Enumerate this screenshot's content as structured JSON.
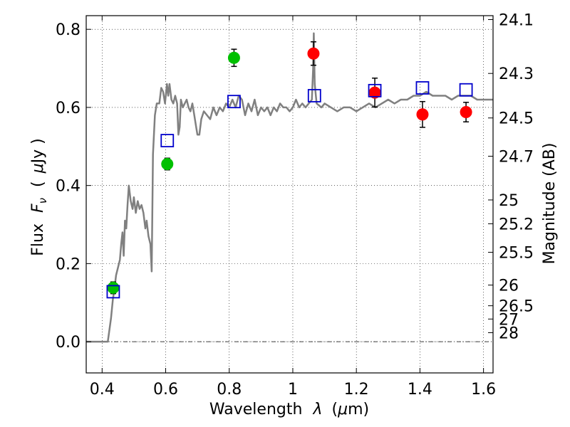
{
  "chart_data": {
    "type": "scatter",
    "xlabel": "Wavelength",
    "xlabel_symbol": "λ",
    "xlabel_unit_open": "(",
    "xlabel_unit_mu": "μ",
    "xlabel_unit_rest": "m)",
    "ylabel": "Flux",
    "ylabel_symbol": "F",
    "ylabel_subscript": "ν",
    "ylabel_unit_open": "(",
    "ylabel_unit_mu": "μ",
    "ylabel_unit_rest": "Jy )",
    "y2label": "Magnitude (AB)",
    "xlim": [
      0.35,
      1.63
    ],
    "ylim": [
      -0.08,
      0.835
    ],
    "grid": true,
    "x_ticks": [
      {
        "value": 0.4,
        "label": "0.4"
      },
      {
        "value": 0.6,
        "label": "0.6"
      },
      {
        "value": 0.8,
        "label": "0.8"
      },
      {
        "value": 1.0,
        "label": "1"
      },
      {
        "value": 1.2,
        "label": "1.2"
      },
      {
        "value": 1.4,
        "label": "1.4"
      },
      {
        "value": 1.6,
        "label": "1.6"
      }
    ],
    "y_ticks": [
      {
        "value": 0.0,
        "label": "0.0"
      },
      {
        "value": 0.2,
        "label": "0.2"
      },
      {
        "value": 0.4,
        "label": "0.4"
      },
      {
        "value": 0.6,
        "label": "0.6"
      },
      {
        "value": 0.8,
        "label": "0.8"
      }
    ],
    "y2_ticks": [
      {
        "flux": 0.825,
        "label": "24.1"
      },
      {
        "flux": 0.687,
        "label": "24.3"
      },
      {
        "flux": 0.573,
        "label": "24.5"
      },
      {
        "flux": 0.475,
        "label": "24.7"
      },
      {
        "flux": 0.363,
        "label": "25"
      },
      {
        "flux": 0.302,
        "label": "25.2"
      },
      {
        "flux": 0.229,
        "label": "25.5"
      },
      {
        "flux": 0.145,
        "label": "26"
      },
      {
        "flux": 0.092,
        "label": "26.5"
      },
      {
        "flux": 0.058,
        "label": "27"
      },
      {
        "flux": 0.023,
        "label": "28"
      }
    ],
    "series": [
      {
        "name": "model_spectrum",
        "kind": "line",
        "color": "#808080",
        "points": [
          [
            0.35,
            0.0
          ],
          [
            0.418,
            0.0
          ],
          [
            0.428,
            0.06
          ],
          [
            0.434,
            0.11
          ],
          [
            0.438,
            0.13
          ],
          [
            0.444,
            0.17
          ],
          [
            0.45,
            0.19
          ],
          [
            0.456,
            0.21
          ],
          [
            0.46,
            0.25
          ],
          [
            0.464,
            0.28
          ],
          [
            0.468,
            0.22
          ],
          [
            0.472,
            0.31
          ],
          [
            0.476,
            0.29
          ],
          [
            0.48,
            0.35
          ],
          [
            0.484,
            0.4
          ],
          [
            0.49,
            0.36
          ],
          [
            0.496,
            0.34
          ],
          [
            0.5,
            0.37
          ],
          [
            0.506,
            0.33
          ],
          [
            0.512,
            0.36
          ],
          [
            0.518,
            0.34
          ],
          [
            0.524,
            0.35
          ],
          [
            0.53,
            0.33
          ],
          [
            0.536,
            0.29
          ],
          [
            0.54,
            0.31
          ],
          [
            0.546,
            0.27
          ],
          [
            0.552,
            0.25
          ],
          [
            0.556,
            0.18
          ],
          [
            0.56,
            0.48
          ],
          [
            0.566,
            0.58
          ],
          [
            0.572,
            0.61
          ],
          [
            0.58,
            0.61
          ],
          [
            0.586,
            0.65
          ],
          [
            0.592,
            0.64
          ],
          [
            0.598,
            0.61
          ],
          [
            0.604,
            0.66
          ],
          [
            0.608,
            0.63
          ],
          [
            0.612,
            0.66
          ],
          [
            0.618,
            0.62
          ],
          [
            0.624,
            0.61
          ],
          [
            0.63,
            0.63
          ],
          [
            0.636,
            0.61
          ],
          [
            0.64,
            0.53
          ],
          [
            0.644,
            0.55
          ],
          [
            0.648,
            0.62
          ],
          [
            0.654,
            0.6
          ],
          [
            0.66,
            0.61
          ],
          [
            0.666,
            0.62
          ],
          [
            0.672,
            0.6
          ],
          [
            0.678,
            0.59
          ],
          [
            0.684,
            0.61
          ],
          [
            0.69,
            0.58
          ],
          [
            0.696,
            0.55
          ],
          [
            0.7,
            0.53
          ],
          [
            0.706,
            0.53
          ],
          [
            0.712,
            0.57
          ],
          [
            0.72,
            0.59
          ],
          [
            0.73,
            0.58
          ],
          [
            0.74,
            0.57
          ],
          [
            0.75,
            0.6
          ],
          [
            0.76,
            0.58
          ],
          [
            0.77,
            0.6
          ],
          [
            0.78,
            0.59
          ],
          [
            0.79,
            0.61
          ],
          [
            0.8,
            0.6
          ],
          [
            0.81,
            0.62
          ],
          [
            0.82,
            0.6
          ],
          [
            0.83,
            0.63
          ],
          [
            0.84,
            0.62
          ],
          [
            0.85,
            0.58
          ],
          [
            0.86,
            0.61
          ],
          [
            0.87,
            0.59
          ],
          [
            0.88,
            0.62
          ],
          [
            0.89,
            0.58
          ],
          [
            0.9,
            0.6
          ],
          [
            0.91,
            0.59
          ],
          [
            0.92,
            0.6
          ],
          [
            0.93,
            0.58
          ],
          [
            0.94,
            0.6
          ],
          [
            0.95,
            0.59
          ],
          [
            0.96,
            0.61
          ],
          [
            0.97,
            0.6
          ],
          [
            0.98,
            0.6
          ],
          [
            0.99,
            0.59
          ],
          [
            1.0,
            0.6
          ],
          [
            1.01,
            0.62
          ],
          [
            1.02,
            0.6
          ],
          [
            1.03,
            0.61
          ],
          [
            1.04,
            0.6
          ],
          [
            1.05,
            0.61
          ],
          [
            1.06,
            0.62
          ],
          [
            1.064,
            0.7
          ],
          [
            1.066,
            0.79
          ],
          [
            1.069,
            0.66
          ],
          [
            1.075,
            0.61
          ],
          [
            1.09,
            0.6
          ],
          [
            1.1,
            0.61
          ],
          [
            1.12,
            0.6
          ],
          [
            1.14,
            0.59
          ],
          [
            1.16,
            0.6
          ],
          [
            1.18,
            0.6
          ],
          [
            1.2,
            0.59
          ],
          [
            1.22,
            0.6
          ],
          [
            1.24,
            0.61
          ],
          [
            1.26,
            0.6
          ],
          [
            1.28,
            0.61
          ],
          [
            1.3,
            0.62
          ],
          [
            1.32,
            0.61
          ],
          [
            1.34,
            0.62
          ],
          [
            1.36,
            0.62
          ],
          [
            1.38,
            0.63
          ],
          [
            1.4,
            0.63
          ],
          [
            1.42,
            0.64
          ],
          [
            1.44,
            0.63
          ],
          [
            1.46,
            0.63
          ],
          [
            1.48,
            0.63
          ],
          [
            1.5,
            0.62
          ],
          [
            1.52,
            0.63
          ],
          [
            1.54,
            0.63
          ],
          [
            1.56,
            0.63
          ],
          [
            1.58,
            0.62
          ],
          [
            1.6,
            0.62
          ],
          [
            1.63,
            0.62
          ]
        ]
      },
      {
        "name": "green_photometry",
        "kind": "points",
        "color": "#00c000",
        "x": [
          0.435,
          0.605,
          0.815
        ],
        "y": [
          0.138,
          0.455,
          0.727
        ],
        "yerr": [
          0.015,
          0.015,
          0.022
        ]
      },
      {
        "name": "red_photometry",
        "kind": "points",
        "color": "#ff0000",
        "x": [
          1.065,
          1.258,
          1.408,
          1.545
        ],
        "y": [
          0.738,
          0.638,
          0.582,
          0.588
        ],
        "yerr": [
          0.03,
          0.037,
          0.033,
          0.025
        ]
      },
      {
        "name": "model_synthetic_photometry",
        "kind": "squares",
        "color": "#0000cc",
        "x": [
          0.435,
          0.605,
          0.815,
          1.068,
          1.258,
          1.408,
          1.545
        ],
        "y": [
          0.128,
          0.515,
          0.615,
          0.63,
          0.643,
          0.65,
          0.645
        ]
      }
    ]
  }
}
